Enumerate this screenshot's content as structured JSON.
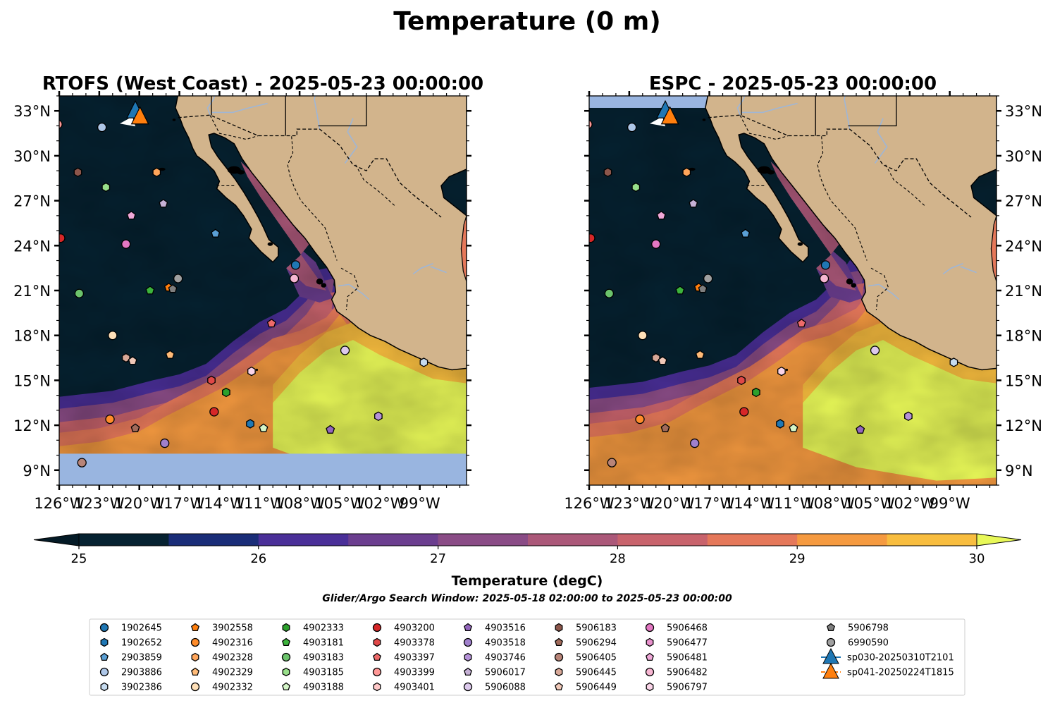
{
  "figure": {
    "title": "Temperature (0 m)"
  },
  "colors": {
    "ocean_cold": "#062231",
    "land": "#d2b48c",
    "nodata": "#99b5e0",
    "river": "#9fb6d6",
    "border": "#000000"
  },
  "chart_data": [
    {
      "type": "heatmap",
      "title": "RTOFS (West Coast) - 2025-05-23 00:00:00",
      "xlim": [
        -126,
        -95.5
      ],
      "ylim": [
        8,
        34
      ],
      "xticks": [
        "126°W",
        "123°W",
        "120°W",
        "117°W",
        "114°W",
        "111°W",
        "108°W",
        "105°W",
        "102°W",
        "99°W"
      ],
      "yticks": [
        "9°N",
        "12°N",
        "15°N",
        "18°N",
        "21°N",
        "24°N",
        "27°N",
        "30°N",
        "33°N"
      ],
      "xtick_values": [
        -126,
        -123,
        -120,
        -117,
        -114,
        -111,
        -108,
        -105,
        -102,
        -99
      ],
      "ytick_values": [
        9,
        12,
        15,
        18,
        21,
        24,
        27,
        30,
        33
      ],
      "grid": false,
      "model_domain_south_lat": 10.1
    },
    {
      "type": "heatmap",
      "title": "ESPC - 2025-05-23 00:00:00",
      "xlim": [
        -126,
        -95.5
      ],
      "ylim": [
        8,
        34
      ],
      "xticks": [
        "126°W",
        "123°W",
        "120°W",
        "117°W",
        "114°W",
        "111°W",
        "108°W",
        "105°W",
        "102°W",
        "99°W"
      ],
      "yticks": [
        "9°N",
        "12°N",
        "15°N",
        "18°N",
        "21°N",
        "24°N",
        "27°N",
        "30°N",
        "33°N"
      ],
      "xtick_values": [
        -126,
        -123,
        -120,
        -117,
        -114,
        -111,
        -108,
        -105,
        -102,
        -99
      ],
      "ytick_values": [
        9,
        12,
        15,
        18,
        21,
        24,
        27,
        30,
        33
      ],
      "grid": false,
      "model_domain_north_lat": 33.2
    }
  ],
  "colorbar": {
    "label": "Temperature (degC)",
    "ticks": [
      "25",
      "26",
      "27",
      "28",
      "29",
      "30"
    ],
    "tick_values": [
      25,
      26,
      27,
      28,
      29,
      30
    ],
    "range": [
      25,
      30
    ],
    "extend": "both",
    "levels": [
      25,
      25.5,
      26,
      26.5,
      27,
      27.5,
      28,
      28.5,
      29,
      29.5,
      30
    ],
    "colors": [
      "#062231",
      "#1a2d78",
      "#4a2f98",
      "#6b3e8f",
      "#8a4c86",
      "#ab5879",
      "#c8636c",
      "#e5785a",
      "#f59a40",
      "#f8bd3f"
    ],
    "under_color": "#041a26",
    "over_color": "#e8f858"
  },
  "search_window": "Glider/Argo Search Window: 2025-05-18 02:00:00 to 2025-05-23 00:00:00",
  "legend": {
    "placement": "bottom",
    "entries": [
      {
        "name": "1902645",
        "color": "#1f77b4",
        "marker": "circle"
      },
      {
        "name": "1902652",
        "color": "#1f77b4",
        "marker": "hexagon"
      },
      {
        "name": "2903859",
        "color": "#5a9fd4",
        "marker": "pentagon"
      },
      {
        "name": "2903886",
        "color": "#aec7e8",
        "marker": "circle"
      },
      {
        "name": "3902386",
        "color": "#c6dbef",
        "marker": "hexagon"
      },
      {
        "name": "3902558",
        "color": "#ff7f0e",
        "marker": "pentagon"
      },
      {
        "name": "4902316",
        "color": "#ff8c2a",
        "marker": "circle"
      },
      {
        "name": "4902328",
        "color": "#ffa55a",
        "marker": "hexagon"
      },
      {
        "name": "4902329",
        "color": "#ffbb78",
        "marker": "pentagon"
      },
      {
        "name": "4902332",
        "color": "#ffe0b8",
        "marker": "circle"
      },
      {
        "name": "4902333",
        "color": "#2ca02c",
        "marker": "hexagon"
      },
      {
        "name": "4903181",
        "color": "#3cb33c",
        "marker": "pentagon"
      },
      {
        "name": "4903183",
        "color": "#6cc36c",
        "marker": "circle"
      },
      {
        "name": "4903185",
        "color": "#98df8a",
        "marker": "hexagon"
      },
      {
        "name": "4903188",
        "color": "#d4f5c8",
        "marker": "pentagon"
      },
      {
        "name": "4903200",
        "color": "#d62728",
        "marker": "circle"
      },
      {
        "name": "4903378",
        "color": "#e04848",
        "marker": "hexagon"
      },
      {
        "name": "4903397",
        "color": "#ee6a6a",
        "marker": "pentagon"
      },
      {
        "name": "4903399",
        "color": "#ff9896",
        "marker": "circle"
      },
      {
        "name": "4903401",
        "color": "#ffc8c8",
        "marker": "hexagon"
      },
      {
        "name": "4903516",
        "color": "#9467bd",
        "marker": "pentagon"
      },
      {
        "name": "4903518",
        "color": "#a080cc",
        "marker": "circle"
      },
      {
        "name": "4903746",
        "color": "#b592d8",
        "marker": "hexagon"
      },
      {
        "name": "5906017",
        "color": "#c5b0d5",
        "marker": "pentagon"
      },
      {
        "name": "5906088",
        "color": "#dcc9ec",
        "marker": "circle"
      },
      {
        "name": "5906183",
        "color": "#8c564b",
        "marker": "hexagon"
      },
      {
        "name": "5906294",
        "color": "#a06a5a",
        "marker": "pentagon"
      },
      {
        "name": "5906405",
        "color": "#b88478",
        "marker": "circle"
      },
      {
        "name": "5906445",
        "color": "#d8a898",
        "marker": "hexagon"
      },
      {
        "name": "5906449",
        "color": "#f0c8b8",
        "marker": "pentagon"
      },
      {
        "name": "5906468",
        "color": "#e377c2",
        "marker": "circle"
      },
      {
        "name": "5906477",
        "color": "#e890cc",
        "marker": "hexagon"
      },
      {
        "name": "5906481",
        "color": "#f0a8d8",
        "marker": "pentagon"
      },
      {
        "name": "5906482",
        "color": "#f7b6d2",
        "marker": "circle"
      },
      {
        "name": "5906797",
        "color": "#fad4e8",
        "marker": "hexagon"
      },
      {
        "name": "5906798",
        "color": "#7f7f7f",
        "marker": "pentagon"
      },
      {
        "name": "6990590",
        "color": "#a0a0a0",
        "marker": "circle"
      },
      {
        "name": "sp030-20250310T2101",
        "color": "#1f77b4",
        "marker": "triangle-line"
      },
      {
        "name": "sp041-20250224T1815",
        "color": "#ff7f0e",
        "marker": "triangle-line"
      }
    ]
  },
  "floats": [
    {
      "name": "4903399",
      "lon": -126.1,
      "lat": 32.1
    },
    {
      "name": "2903886",
      "lon": -122.8,
      "lat": 31.9
    },
    {
      "name": "5906183",
      "lon": -124.6,
      "lat": 28.9
    },
    {
      "name": "4902328",
      "lon": -118.7,
      "lat": 28.9
    },
    {
      "name": "4903185",
      "lon": -122.5,
      "lat": 27.9
    },
    {
      "name": "5906017",
      "lon": -118.2,
      "lat": 26.8
    },
    {
      "name": "5906481",
      "lon": -120.6,
      "lat": 26.0
    },
    {
      "name": "2903859",
      "lon": -114.3,
      "lat": 24.8
    },
    {
      "name": "4903200",
      "lon": -125.9,
      "lat": 24.5
    },
    {
      "name": "5906468",
      "lon": -121.0,
      "lat": 24.1
    },
    {
      "name": "1902645",
      "lon": -108.3,
      "lat": 22.7
    },
    {
      "name": "5906482",
      "lon": -108.4,
      "lat": 21.8
    },
    {
      "name": "6990590",
      "lon": -117.1,
      "lat": 21.8
    },
    {
      "name": "3902558",
      "lon": -117.8,
      "lat": 21.2
    },
    {
      "name": "4903181",
      "lon": -119.2,
      "lat": 21.0
    },
    {
      "name": "5906798",
      "lon": -117.5,
      "lat": 21.1
    },
    {
      "name": "4903183",
      "lon": -124.5,
      "lat": 20.8
    },
    {
      "name": "4903397",
      "lon": -110.1,
      "lat": 18.8
    },
    {
      "name": "4902332",
      "lon": -122.0,
      "lat": 18.0
    },
    {
      "name": "5906088",
      "lon": -104.6,
      "lat": 17.0
    },
    {
      "name": "4902329",
      "lon": -117.7,
      "lat": 16.7
    },
    {
      "name": "5906445",
      "lon": -121.0,
      "lat": 16.5
    },
    {
      "name": "5906449",
      "lon": -120.5,
      "lat": 16.3
    },
    {
      "name": "3902386",
      "lon": -98.7,
      "lat": 16.2
    },
    {
      "name": "5906797",
      "lon": -111.6,
      "lat": 15.6
    },
    {
      "name": "4903378",
      "lon": -114.6,
      "lat": 15.0
    },
    {
      "name": "4902333",
      "lon": -113.5,
      "lat": 14.2
    },
    {
      "name": "4902316",
      "lon": -122.2,
      "lat": 12.4
    },
    {
      "name": "4903200",
      "lon": -114.4,
      "lat": 12.9
    },
    {
      "name": "4903746",
      "lon": -102.1,
      "lat": 12.6
    },
    {
      "name": "1902652",
      "lon": -111.7,
      "lat": 12.1
    },
    {
      "name": "4903188",
      "lon": -110.7,
      "lat": 11.8
    },
    {
      "name": "5906294",
      "lon": -120.3,
      "lat": 11.8
    },
    {
      "name": "4903516",
      "lon": -105.7,
      "lat": 11.7
    },
    {
      "name": "4903518",
      "lon": -118.1,
      "lat": 10.8
    },
    {
      "name": "5906405",
      "lon": -124.3,
      "lat": 9.5
    }
  ],
  "gliders": [
    {
      "name": "sp030-20250310T2101",
      "lon": -120.3,
      "lat": 33.0,
      "color": "#1f77b4"
    },
    {
      "name": "sp041-20250224T1815",
      "lon": -119.95,
      "lat": 32.6,
      "color": "#ff7f0e"
    }
  ]
}
